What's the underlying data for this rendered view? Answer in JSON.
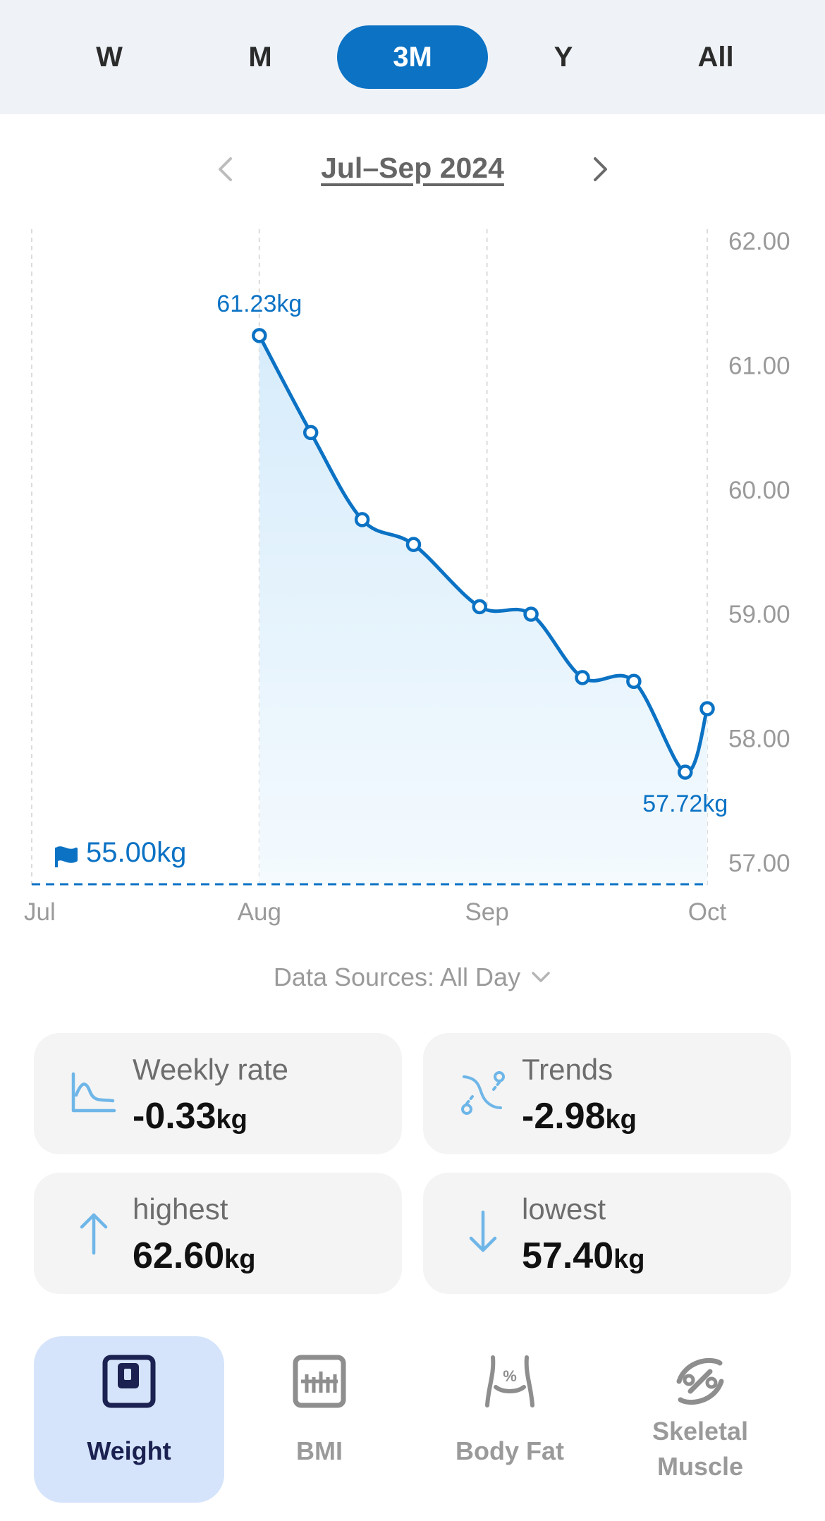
{
  "tabs": [
    {
      "label": "W",
      "active": false
    },
    {
      "label": "M",
      "active": false
    },
    {
      "label": "3M",
      "active": true
    },
    {
      "label": "Y",
      "active": false
    },
    {
      "label": "All",
      "active": false
    }
  ],
  "period": {
    "label": "Jul–Sep 2024"
  },
  "chart_data": {
    "type": "area",
    "x_labels": [
      "Jul",
      "Aug",
      "Sep",
      "Oct"
    ],
    "y_ticks": [
      "62.00",
      "61.00",
      "60.00",
      "59.00",
      "58.00",
      "57.00"
    ],
    "ylim": [
      57,
      62
    ],
    "series": [
      {
        "values": [
          {
            "x": "2024-08-01",
            "y": 61.23
          },
          {
            "x": "2024-08-08",
            "y": 60.45
          },
          {
            "x": "2024-08-15",
            "y": 59.75
          },
          {
            "x": "2024-08-22",
            "y": 59.55
          },
          {
            "x": "2024-08-31",
            "y": 59.05
          },
          {
            "x": "2024-09-07",
            "y": 58.99
          },
          {
            "x": "2024-09-14",
            "y": 58.48
          },
          {
            "x": "2024-09-21",
            "y": 58.45
          },
          {
            "x": "2024-09-28",
            "y": 57.72
          },
          {
            "x": "2024-10-01",
            "y": 58.23
          }
        ]
      }
    ],
    "max_label": "61.23kg",
    "min_label": "57.72kg",
    "goal": {
      "value": 55.0,
      "label": "55.00kg"
    },
    "accent": "#0b72c4",
    "fill": "#dff0fb"
  },
  "sources": {
    "label": "Data Sources: All Day"
  },
  "stats": [
    {
      "title": "Weekly rate",
      "value": "-0.33",
      "unit": "kg",
      "icon": "weekly-rate-icon"
    },
    {
      "title": "Trends",
      "value": "-2.98",
      "unit": "kg",
      "icon": "trends-icon"
    },
    {
      "title": "highest",
      "value": "62.60",
      "unit": "kg",
      "icon": "arrow-up-icon"
    },
    {
      "title": "lowest",
      "value": "57.40",
      "unit": "kg",
      "icon": "arrow-down-icon"
    }
  ],
  "metrics": [
    {
      "label": "Weight",
      "active": true,
      "icon": "scale-icon"
    },
    {
      "label": "BMI",
      "active": false,
      "icon": "bmi-icon"
    },
    {
      "label": "Body Fat",
      "active": false,
      "icon": "body-fat-icon"
    },
    {
      "label": "Skeletal Muscle",
      "active": false,
      "icon": "skeletal-muscle-icon"
    }
  ],
  "colors": {
    "accent": "#0b72c4",
    "icon_light": "#6fb6e8",
    "card_bg": "#f4f4f4",
    "active_metric_bg": "#d5e4fb"
  }
}
